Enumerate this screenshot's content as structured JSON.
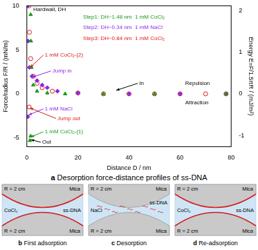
{
  "chart_data": {
    "type": "scatter",
    "x_label": "Distance D / nm",
    "y_label": "Force/radius F/R / (mN/m)",
    "y2_label": "Energy E=F/1.5πR / (mJ/m²)",
    "xlim": [
      0,
      80
    ],
    "xticks": [
      0,
      20,
      40,
      60,
      80
    ],
    "ylim": [
      -6,
      10
    ],
    "yticks": [
      -5,
      0,
      5,
      10
    ],
    "y2lim": [
      -1.27,
      2.12
    ],
    "y2ticks": [
      -1,
      0,
      1,
      2
    ],
    "grid": false,
    "series": [
      {
        "name": "1 mM CoCl₂-(1)",
        "color": "#1a9a1a",
        "marker": "triangle",
        "x": [
          1.2,
          1.5,
          1.5,
          1.6,
          1.8,
          2.5,
          4,
          8,
          15,
          30,
          50,
          78
        ],
        "values": [
          -5.3,
          -4.8,
          9,
          6,
          3,
          1,
          0.3,
          0.1,
          0,
          0,
          0,
          0
        ]
      },
      {
        "name": "1 mM NaCl",
        "color": "#8a2be2",
        "marker": "diamond",
        "x": [
          0.34,
          0.4,
          0.5,
          1,
          2,
          4,
          6,
          8,
          12,
          20,
          40,
          60,
          78
        ],
        "values": [
          10,
          -2.6,
          6,
          3,
          2,
          1.5,
          1,
          0.7,
          0.3,
          0.1,
          0,
          0,
          0
        ]
      },
      {
        "name": "1 mM CoCl₂-(2)",
        "color": "#e0191b",
        "marker": "open_circle",
        "x": [
          0.84,
          0.9,
          1,
          1.5,
          2.5,
          4,
          6,
          10,
          20,
          30,
          40,
          50,
          60,
          70,
          78
        ],
        "values": [
          10,
          -1.5,
          7,
          4,
          2,
          1.2,
          0.7,
          0.3,
          0.1,
          0,
          0,
          0,
          0,
          0,
          0
        ]
      }
    ],
    "annotations": [
      {
        "text": "Hardwall, DH",
        "color": "#000000"
      },
      {
        "text": "Step1: DH~1.48 nm  1 mM CoCl₂",
        "color": "#1a9a1a"
      },
      {
        "text": "Step2: DH~0.34 nm  1 mM NaCl",
        "color": "#8a2be2"
      },
      {
        "text": "Step3: DH~0.84 nm  1 mM CoCl₂",
        "color": "#e0191b"
      },
      {
        "text": "Jump in",
        "color": "#8a2be2"
      },
      {
        "text": "Jump out",
        "color": "#e0191b"
      },
      {
        "text": "Out",
        "color": "#000000"
      },
      {
        "text": "In",
        "color": "#000000"
      },
      {
        "text": "Repulsion",
        "color": "#000000"
      },
      {
        "text": "Attraction",
        "color": "#000000"
      }
    ]
  },
  "figure_caption": {
    "label": "a",
    "text": "Desorption force-distance profiles of ss-DNA"
  },
  "panels": [
    {
      "label": "b",
      "title": "First adsorption",
      "solution": "CoCl₂",
      "radius_label": "R = 2 cm",
      "surface": "Mica",
      "adsorbate": "ss-DNA"
    },
    {
      "label": "c",
      "title": "Desorption",
      "solution": "NaCl",
      "radius_label": "R = 2 cm",
      "surface": "Mica",
      "adsorbate": "ss-DNA"
    },
    {
      "label": "d",
      "title": "Re-adsorption",
      "solution": "CoCl₂",
      "radius_label": "R = 2 cm",
      "surface": "Mica",
      "adsorbate": "ss-DNA"
    }
  ]
}
